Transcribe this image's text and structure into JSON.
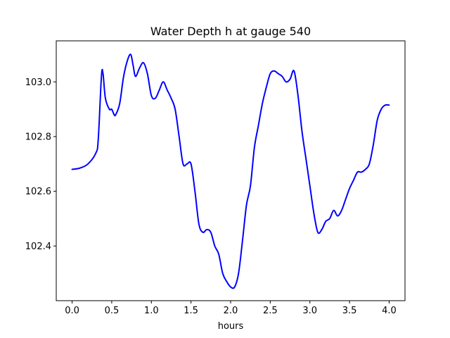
{
  "chart_data": {
    "type": "line",
    "title": "Water Depth h at gauge 540",
    "xlabel": "hours",
    "ylabel": "",
    "xlim": [
      -0.2,
      4.2
    ],
    "ylim": [
      102.2,
      103.15
    ],
    "xticks": [
      0.0,
      0.5,
      1.0,
      1.5,
      2.0,
      2.5,
      3.0,
      3.5,
      4.0
    ],
    "xtick_labels": [
      "0.0",
      "0.5",
      "1.0",
      "1.5",
      "2.0",
      "2.5",
      "3.0",
      "3.5",
      "4.0"
    ],
    "yticks": [
      102.4,
      102.6,
      102.8,
      103.0
    ],
    "ytick_labels": [
      "102.4",
      "102.6",
      "102.8",
      "103.0"
    ],
    "grid": false,
    "series": [
      {
        "color": "#0000ff",
        "x": [
          0.0,
          0.1,
          0.2,
          0.3,
          0.33,
          0.37,
          0.39,
          0.42,
          0.47,
          0.5,
          0.53,
          0.55,
          0.6,
          0.65,
          0.7,
          0.74,
          0.77,
          0.8,
          0.85,
          0.9,
          0.95,
          1.0,
          1.05,
          1.1,
          1.15,
          1.2,
          1.25,
          1.3,
          1.35,
          1.4,
          1.45,
          1.5,
          1.55,
          1.6,
          1.65,
          1.7,
          1.75,
          1.8,
          1.85,
          1.9,
          1.95,
          2.0,
          2.05,
          2.1,
          2.15,
          2.2,
          2.25,
          2.3,
          2.35,
          2.4,
          2.45,
          2.5,
          2.55,
          2.6,
          2.65,
          2.7,
          2.75,
          2.8,
          2.85,
          2.9,
          2.95,
          3.0,
          3.05,
          3.1,
          3.15,
          3.2,
          3.25,
          3.3,
          3.35,
          3.4,
          3.45,
          3.5,
          3.55,
          3.6,
          3.65,
          3.7,
          3.75,
          3.8,
          3.85,
          3.9,
          3.95,
          4.0
        ],
        "values": [
          102.68,
          102.685,
          102.7,
          102.74,
          102.79,
          103.02,
          103.03,
          102.94,
          102.9,
          102.9,
          102.88,
          102.88,
          102.92,
          103.02,
          103.08,
          103.1,
          103.06,
          103.02,
          103.05,
          103.07,
          103.03,
          102.95,
          102.94,
          102.97,
          103.0,
          102.97,
          102.94,
          102.9,
          102.8,
          102.7,
          102.7,
          102.7,
          102.6,
          102.48,
          102.45,
          102.46,
          102.45,
          102.4,
          102.37,
          102.3,
          102.27,
          102.25,
          102.25,
          102.3,
          102.42,
          102.55,
          102.62,
          102.76,
          102.84,
          102.92,
          102.98,
          103.03,
          103.04,
          103.03,
          103.02,
          103.0,
          103.01,
          103.04,
          102.95,
          102.82,
          102.72,
          102.62,
          102.52,
          102.45,
          102.46,
          102.49,
          102.5,
          102.53,
          102.51,
          102.53,
          102.57,
          102.61,
          102.64,
          102.67,
          102.67,
          102.68,
          102.7,
          102.77,
          102.86,
          102.9,
          102.915,
          102.915
        ]
      }
    ]
  }
}
